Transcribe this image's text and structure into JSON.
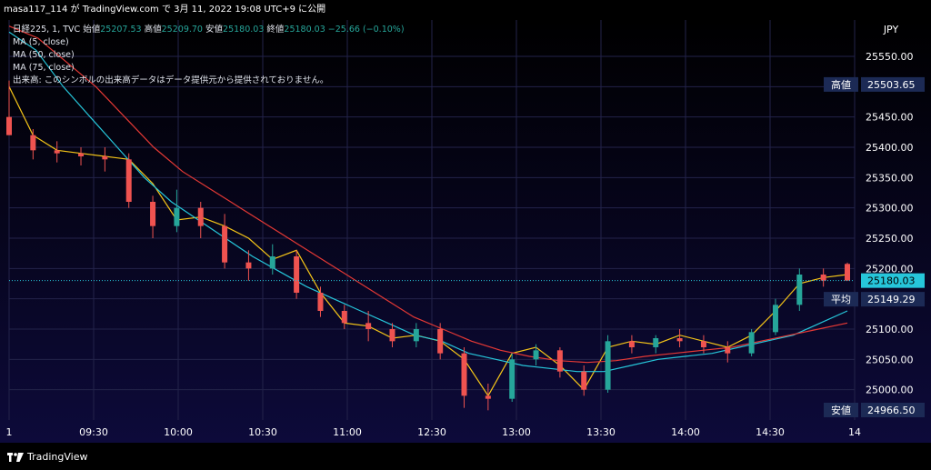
{
  "header": {
    "caption": "masa117_114 が TradingView.com で 3月 11, 2022 19:08 UTC+9 に公開"
  },
  "legend": {
    "symbol": "日経225, 1, TVC",
    "open_label": "始値",
    "open_value": "25207.53",
    "high_label": "高値",
    "high_value": "25209.70",
    "low_label": "安値",
    "low_value": "25180.03",
    "close_label": "終値",
    "close_value": "25180.03",
    "change": "−25.66 (−0.10%)",
    "ma5": "MA (5, close)",
    "ma50": "MA (50, close)",
    "ma75": "MA (75, close)",
    "volume_note": "出来高: このシンボルの出来高データはデータ提供元から提供されておりません。"
  },
  "footer": {
    "brand": "TradingView"
  },
  "chart_data": {
    "type": "candlestick",
    "currency": "JPY",
    "x_tick_labels": [
      "1",
      "09:30",
      "10:00",
      "10:30",
      "11:00",
      "12:30",
      "13:00",
      "13:30",
      "14:00",
      "14:30",
      "14"
    ],
    "y_tick_labels": [
      "25000.00",
      "25050.00",
      "25100.00",
      "25150.00",
      "25200.00",
      "25250.00",
      "25300.00",
      "25350.00",
      "25400.00",
      "25450.00",
      "25500.00",
      "25550.00"
    ],
    "ylim": [
      24950,
      25610
    ],
    "grid": true,
    "price_labels": [
      {
        "label": "高値",
        "value": "25503.65",
        "price": 25503.65
      },
      {
        "label": "",
        "value": "25180.03",
        "price": 25180.03
      },
      {
        "label": "平均",
        "value": "25149.29",
        "price": 25149.29
      },
      {
        "label": "安値",
        "value": "24966.50",
        "price": 24966.5
      }
    ],
    "series": [
      {
        "name": "MA (5, close)",
        "color": "#f5c518",
        "values": [
          25500,
          25420,
          25395,
          25390,
          25385,
          25380,
          25340,
          25280,
          25285,
          25270,
          25250,
          25215,
          25230,
          25160,
          25110,
          25105,
          25085,
          25090,
          25080,
          25050,
          24990,
          25060,
          25070,
          25040,
          25000,
          25070,
          25080,
          25075,
          25090,
          25080,
          25070,
          25090,
          25130,
          25175,
          25185,
          25190
        ]
      },
      {
        "name": "MA (50, close)",
        "color": "#26c6da",
        "values": [
          25590,
          25560,
          25500,
          25450,
          25400,
          25350,
          25310,
          25280,
          25250,
          25220,
          25195,
          25170,
          25150,
          25130,
          25110,
          25090,
          25080,
          25060,
          25050,
          25040,
          25035,
          25030,
          25030,
          25040,
          25050,
          25055,
          25060,
          25070,
          25080,
          25090,
          25110,
          25130
        ]
      },
      {
        "name": "MA (75, close)",
        "color": "#e53935",
        "values": [
          25600,
          25580,
          25540,
          25500,
          25450,
          25400,
          25360,
          25330,
          25300,
          25270,
          25240,
          25210,
          25180,
          25150,
          25120,
          25100,
          25080,
          25065,
          25055,
          25048,
          25045,
          25048,
          25055,
          25060,
          25065,
          25070,
          25080,
          25090,
          25100,
          25110
        ]
      }
    ],
    "candles": [
      {
        "o": 25450,
        "h": 25510,
        "l": 25420,
        "c": 25420
      },
      {
        "o": 25420,
        "h": 25430,
        "l": 25380,
        "c": 25395
      },
      {
        "o": 25395,
        "h": 25410,
        "l": 25375,
        "c": 25390
      },
      {
        "o": 25390,
        "h": 25400,
        "l": 25370,
        "c": 25385
      },
      {
        "o": 25385,
        "h": 25400,
        "l": 25360,
        "c": 25380
      },
      {
        "o": 25380,
        "h": 25390,
        "l": 25300,
        "c": 25310
      },
      {
        "o": 25310,
        "h": 25320,
        "l": 25250,
        "c": 25270
      },
      {
        "o": 25270,
        "h": 25330,
        "l": 25260,
        "c": 25300
      },
      {
        "o": 25300,
        "h": 25310,
        "l": 25250,
        "c": 25270
      },
      {
        "o": 25270,
        "h": 25290,
        "l": 25200,
        "c": 25210
      },
      {
        "o": 25210,
        "h": 25230,
        "l": 25180,
        "c": 25200
      },
      {
        "o": 25200,
        "h": 25240,
        "l": 25190,
        "c": 25220
      },
      {
        "o": 25220,
        "h": 25230,
        "l": 25150,
        "c": 25160
      },
      {
        "o": 25160,
        "h": 25170,
        "l": 25120,
        "c": 25130
      },
      {
        "o": 25130,
        "h": 25140,
        "l": 25100,
        "c": 25110
      },
      {
        "o": 25110,
        "h": 25130,
        "l": 25080,
        "c": 25100
      },
      {
        "o": 25100,
        "h": 25110,
        "l": 25070,
        "c": 25080
      },
      {
        "o": 25080,
        "h": 25110,
        "l": 25070,
        "c": 25100
      },
      {
        "o": 25100,
        "h": 25110,
        "l": 25050,
        "c": 25060
      },
      {
        "o": 25060,
        "h": 25070,
        "l": 24970,
        "c": 24990
      },
      {
        "o": 24990,
        "h": 25010,
        "l": 24966,
        "c": 24985
      },
      {
        "o": 24985,
        "h": 25060,
        "l": 24980,
        "c": 25050
      },
      {
        "o": 25050,
        "h": 25075,
        "l": 25040,
        "c": 25065
      },
      {
        "o": 25065,
        "h": 25070,
        "l": 25020,
        "c": 25030
      },
      {
        "o": 25030,
        "h": 25040,
        "l": 24990,
        "c": 25000
      },
      {
        "o": 25000,
        "h": 25090,
        "l": 24995,
        "c": 25080
      },
      {
        "o": 25080,
        "h": 25090,
        "l": 25060,
        "c": 25070
      },
      {
        "o": 25070,
        "h": 25090,
        "l": 25060,
        "c": 25085
      },
      {
        "o": 25085,
        "h": 25100,
        "l": 25070,
        "c": 25080
      },
      {
        "o": 25080,
        "h": 25090,
        "l": 25060,
        "c": 25070
      },
      {
        "o": 25070,
        "h": 25080,
        "l": 25045,
        "c": 25060
      },
      {
        "o": 25060,
        "h": 25100,
        "l": 25055,
        "c": 25095
      },
      {
        "o": 25095,
        "h": 25150,
        "l": 25090,
        "c": 25140
      },
      {
        "o": 25140,
        "h": 25200,
        "l": 25130,
        "c": 25190
      },
      {
        "o": 25190,
        "h": 25200,
        "l": 25170,
        "c": 25180
      },
      {
        "o": 25207.53,
        "h": 25209.7,
        "l": 25180.03,
        "c": 25180.03
      }
    ]
  }
}
